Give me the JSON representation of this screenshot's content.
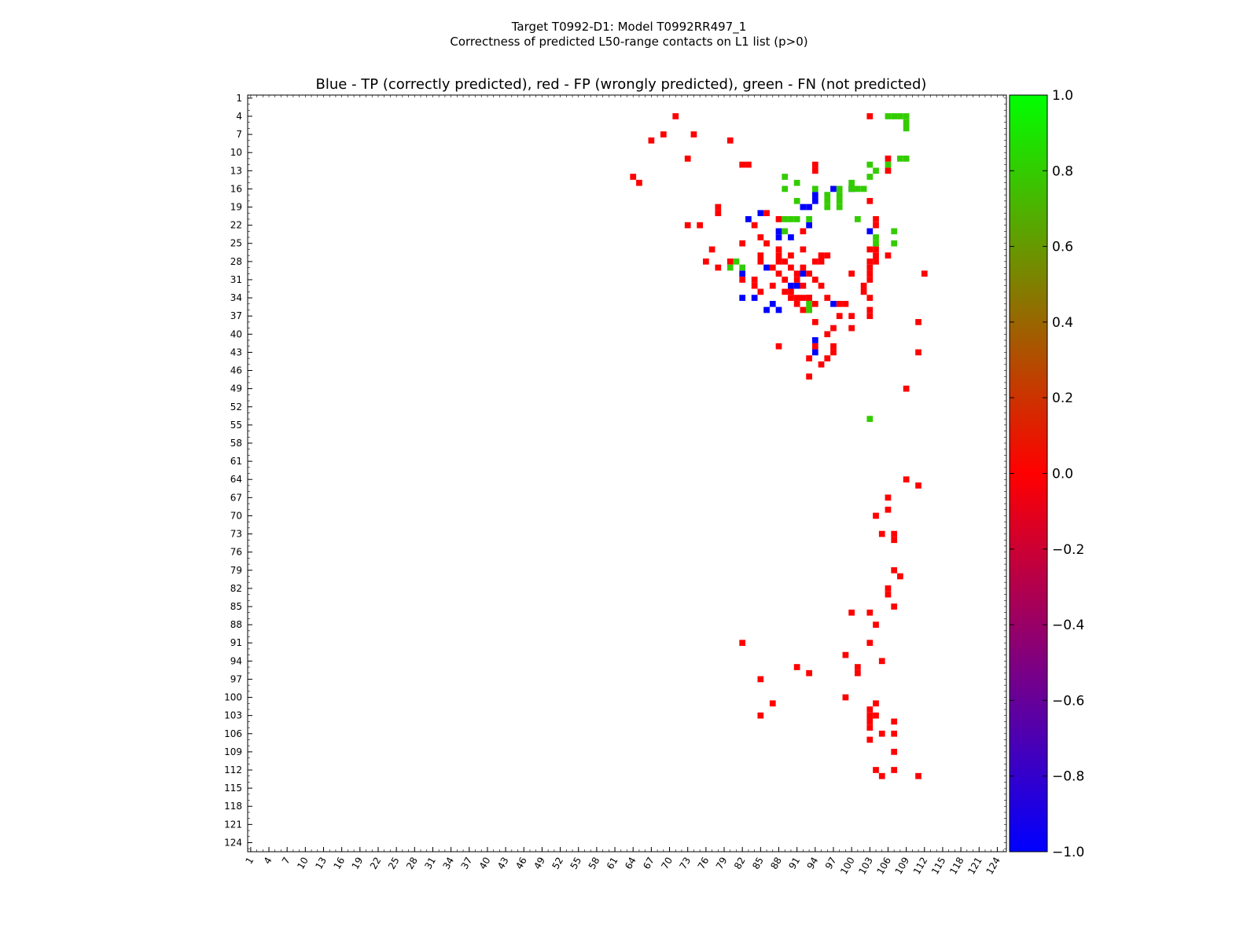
{
  "chart_data": {
    "type": "heatmap",
    "suptitle_line1": "Target T0992-D1: Model T0992RR497_1",
    "suptitle_line2": "Correctness of predicted L50-range contacts on L1 list (p>0)",
    "title": "Blue - TP (correctly predicted), red - FP (wrongly predicted), green - FN (not predicted)",
    "xlabel": "",
    "ylabel": "",
    "axis_range": [
      1,
      125
    ],
    "tick_labels": [
      "1",
      "4",
      "7",
      "10",
      "13",
      "16",
      "19",
      "22",
      "25",
      "28",
      "31",
      "34",
      "37",
      "40",
      "43",
      "46",
      "49",
      "52",
      "55",
      "58",
      "61",
      "64",
      "67",
      "70",
      "73",
      "76",
      "79",
      "82",
      "85",
      "88",
      "91",
      "94",
      "97",
      "100",
      "103",
      "106",
      "109",
      "112",
      "115",
      "118",
      "121",
      "124"
    ],
    "colorbar": {
      "min": -1.0,
      "max": 1.0,
      "tick_labels": [
        "1.0",
        "0.8",
        "0.6",
        "0.4",
        "0.2",
        "0.0",
        "−0.2",
        "−0.4",
        "−0.6",
        "−0.8",
        "−1.0"
      ],
      "color_stops": [
        "#0000ff",
        "#ff0000",
        "#00ff00"
      ]
    },
    "legend": {
      "tp": "#0000ff",
      "fp": "#ff0000",
      "fn": "#33cc00"
    },
    "series": [
      {
        "name": "TP (correctly predicted)",
        "color": "#0000ff",
        "points": [
          [
            88,
            23
          ],
          [
            92,
            19
          ],
          [
            93,
            19
          ],
          [
            97,
            16
          ],
          [
            85,
            20
          ],
          [
            93,
            22
          ],
          [
            90,
            24
          ],
          [
            88,
            24
          ],
          [
            86,
            29
          ],
          [
            92,
            30
          ],
          [
            91,
            32
          ],
          [
            90,
            32
          ],
          [
            87,
            35
          ],
          [
            97,
            35
          ],
          [
            86,
            36
          ],
          [
            82,
            34
          ],
          [
            84,
            34
          ],
          [
            88,
            36
          ],
          [
            83,
            21
          ],
          [
            82,
            30
          ],
          [
            94,
            17
          ],
          [
            94,
            18
          ],
          [
            94,
            41
          ],
          [
            94,
            43
          ],
          [
            100,
            16
          ],
          [
            103,
            23
          ]
        ]
      },
      {
        "name": "FP (wrongly predicted)",
        "color": "#ff0000",
        "points": [
          [
            64,
            14
          ],
          [
            65,
            15
          ],
          [
            67,
            8
          ],
          [
            69,
            7
          ],
          [
            71,
            4
          ],
          [
            73,
            11
          ],
          [
            74,
            7
          ],
          [
            73,
            22
          ],
          [
            77,
            26
          ],
          [
            78,
            19
          ],
          [
            78,
            20
          ],
          [
            80,
            8
          ],
          [
            83,
            12
          ],
          [
            82,
            12
          ],
          [
            82,
            25
          ],
          [
            84,
            22
          ],
          [
            84,
            31
          ],
          [
            85,
            24
          ],
          [
            85,
            27
          ],
          [
            85,
            28
          ],
          [
            86,
            25
          ],
          [
            86,
            20
          ],
          [
            87,
            29
          ],
          [
            88,
            21
          ],
          [
            88,
            28
          ],
          [
            88,
            27
          ],
          [
            88,
            26
          ],
          [
            88,
            30
          ],
          [
            89,
            28
          ],
          [
            90,
            27
          ],
          [
            90,
            29
          ],
          [
            91,
            30
          ],
          [
            91,
            31
          ],
          [
            91,
            35
          ],
          [
            92,
            29
          ],
          [
            92,
            36
          ],
          [
            92,
            32
          ],
          [
            93,
            36
          ],
          [
            93,
            34
          ],
          [
            93,
            44
          ],
          [
            94,
            35
          ],
          [
            94,
            42
          ],
          [
            94,
            12
          ],
          [
            94,
            13
          ],
          [
            95,
            28
          ],
          [
            95,
            32
          ],
          [
            95,
            27
          ],
          [
            94,
            28
          ],
          [
            96,
            27
          ],
          [
            96,
            34
          ],
          [
            96,
            44
          ],
          [
            97,
            43
          ],
          [
            98,
            35
          ],
          [
            98,
            37
          ],
          [
            99,
            35
          ],
          [
            100,
            37
          ],
          [
            100,
            39
          ],
          [
            102,
            33
          ],
          [
            102,
            32
          ],
          [
            103,
            31
          ],
          [
            103,
            34
          ],
          [
            103,
            37
          ],
          [
            103,
            18
          ],
          [
            103,
            26
          ],
          [
            103,
            28
          ],
          [
            103,
            29
          ],
          [
            103,
            4
          ],
          [
            104,
            22
          ],
          [
            104,
            27
          ],
          [
            106,
            11
          ],
          [
            106,
            27
          ],
          [
            111,
            43
          ],
          [
            112,
            30
          ],
          [
            75,
            22
          ],
          [
            76,
            28
          ],
          [
            78,
            29
          ],
          [
            80,
            28
          ],
          [
            82,
            31
          ],
          [
            84,
            32
          ],
          [
            85,
            33
          ],
          [
            87,
            32
          ],
          [
            89,
            31
          ],
          [
            89,
            33
          ],
          [
            90,
            33
          ],
          [
            90,
            34
          ],
          [
            91,
            34
          ],
          [
            92,
            34
          ],
          [
            93,
            34
          ],
          [
            94,
            38
          ],
          [
            96,
            40
          ],
          [
            88,
            42
          ],
          [
            93,
            30
          ],
          [
            94,
            31
          ],
          [
            100,
            30
          ],
          [
            93,
            47
          ],
          [
            97,
            42
          ],
          [
            95,
            45
          ],
          [
            97,
            39
          ],
          [
            92,
            26
          ],
          [
            92,
            23
          ],
          [
            104,
            21
          ],
          [
            103,
            30
          ],
          [
            103,
            36
          ],
          [
            104,
            26
          ],
          [
            104,
            28
          ],
          [
            111,
            38
          ],
          [
            109,
            49
          ],
          [
            109,
            64
          ],
          [
            111,
            65
          ],
          [
            106,
            67
          ],
          [
            106,
            13
          ],
          [
            106,
            69
          ],
          [
            104,
            70
          ],
          [
            107,
            73
          ],
          [
            105,
            73
          ],
          [
            107,
            74
          ],
          [
            107,
            79
          ],
          [
            108,
            80
          ],
          [
            106,
            82
          ],
          [
            106,
            83
          ],
          [
            107,
            85
          ],
          [
            100,
            86
          ],
          [
            103,
            86
          ],
          [
            104,
            88
          ],
          [
            103,
            91
          ],
          [
            99,
            93
          ],
          [
            105,
            94
          ],
          [
            101,
            96
          ],
          [
            99,
            100
          ],
          [
            104,
            101
          ],
          [
            104,
            103
          ],
          [
            103,
            103
          ],
          [
            103,
            105
          ],
          [
            105,
            106
          ],
          [
            107,
            106
          ],
          [
            107,
            109
          ],
          [
            111,
            113
          ],
          [
            103,
            104
          ],
          [
            103,
            102
          ],
          [
            107,
            104
          ],
          [
            105,
            113
          ],
          [
            104,
            112
          ],
          [
            107,
            112
          ],
          [
            103,
            107
          ],
          [
            101,
            95
          ],
          [
            93,
            96
          ],
          [
            91,
            95
          ],
          [
            85,
            97
          ],
          [
            82,
            91
          ],
          [
            87,
            101
          ],
          [
            85,
            103
          ]
        ]
      },
      {
        "name": "FN (not predicted)",
        "color": "#33cc00",
        "points": [
          [
            106,
            4
          ],
          [
            107,
            4
          ],
          [
            108,
            4
          ],
          [
            109,
            4
          ],
          [
            109,
            5
          ],
          [
            109,
            6
          ],
          [
            108,
            11
          ],
          [
            109,
            11
          ],
          [
            103,
            12
          ],
          [
            106,
            12
          ],
          [
            104,
            13
          ],
          [
            103,
            14
          ],
          [
            100,
            15
          ],
          [
            100,
            16
          ],
          [
            101,
            16
          ],
          [
            102,
            16
          ],
          [
            98,
            16
          ],
          [
            98,
            17
          ],
          [
            98,
            18
          ],
          [
            98,
            19
          ],
          [
            96,
            17
          ],
          [
            96,
            18
          ],
          [
            96,
            19
          ],
          [
            89,
            14
          ],
          [
            89,
            16
          ],
          [
            89,
            21
          ],
          [
            91,
            18
          ],
          [
            91,
            21
          ],
          [
            90,
            21
          ],
          [
            93,
            21
          ],
          [
            89,
            23
          ],
          [
            93,
            35
          ],
          [
            93,
            36
          ],
          [
            104,
            24
          ],
          [
            107,
            23
          ],
          [
            107,
            25
          ],
          [
            104,
            25
          ],
          [
            101,
            21
          ],
          [
            82,
            29
          ],
          [
            91,
            15
          ],
          [
            94,
            16
          ],
          [
            103,
            54
          ],
          [
            81,
            28
          ],
          [
            80,
            29
          ]
        ]
      }
    ]
  }
}
